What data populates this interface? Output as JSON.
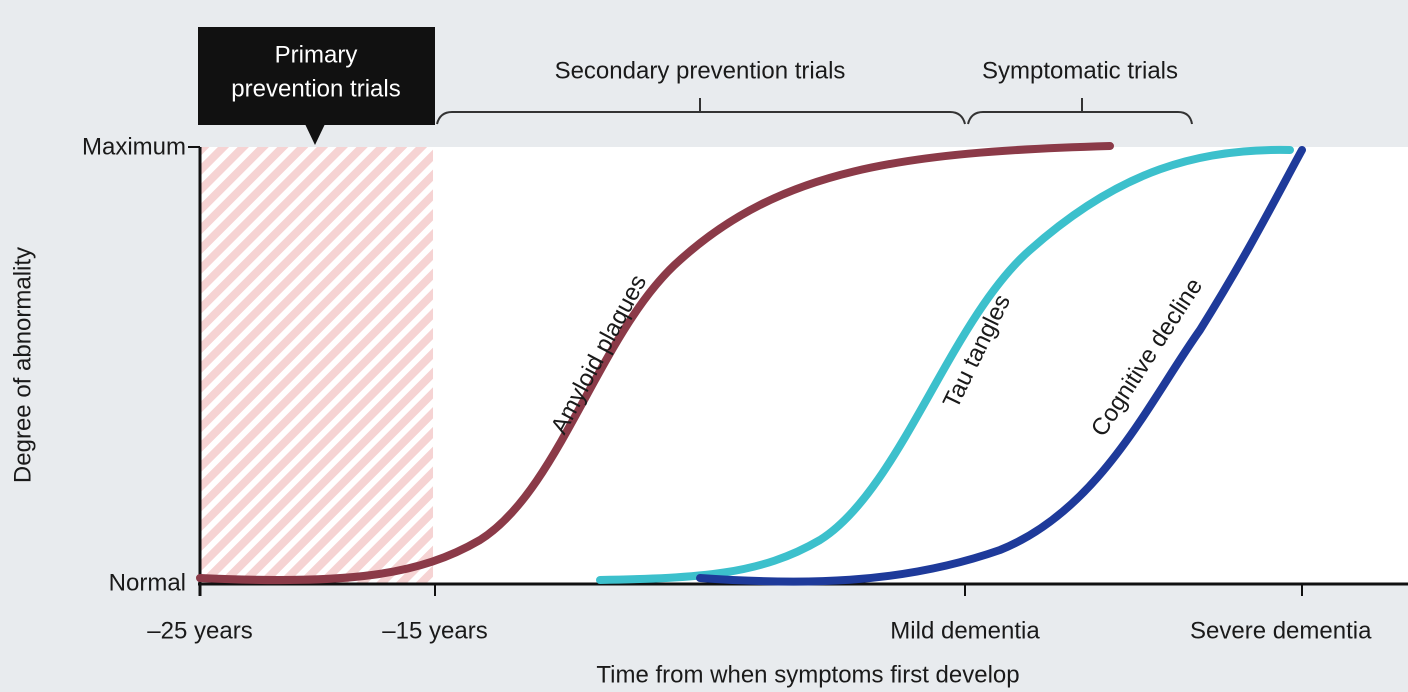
{
  "phases": {
    "primary_line1": "Primary",
    "primary_line2": "prevention trials",
    "secondary": "Secondary prevention trials",
    "symptomatic": "Symptomatic trials"
  },
  "y_axis": {
    "title": "Degree of abnormality",
    "top": "Maximum",
    "bottom": "Normal"
  },
  "x_axis": {
    "title": "Time from when symptoms first develop",
    "labels": [
      "–25 years",
      "–15 years",
      "Mild dementia",
      "Severe dementia"
    ]
  },
  "curves": [
    "Amyloid plaques",
    "Tau tangles",
    "Cognitive decline"
  ]
}
